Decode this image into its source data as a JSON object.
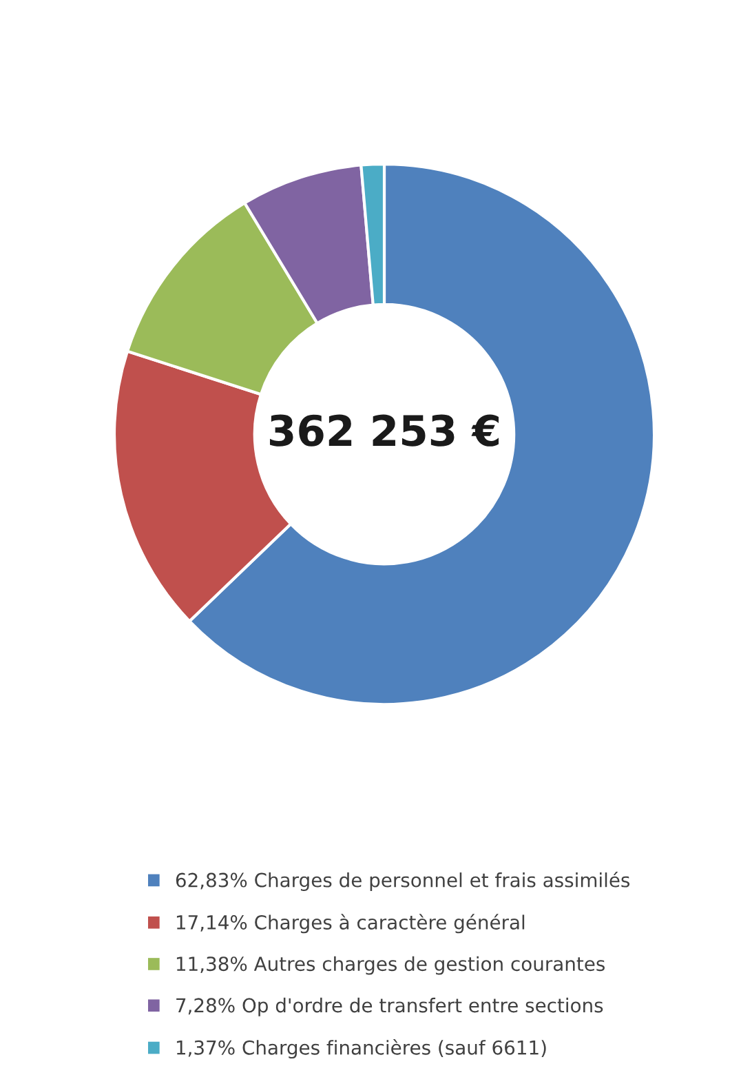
{
  "chart_data": {
    "type": "donut",
    "categories": [
      "62,83% Charges de personnel et frais assimilés",
      "17,14% Charges à caractère général",
      "11,38% Autres charges de gestion courantes",
      "7,28% Op d'ordre de transfert entre sections",
      "1,37% Charges financières (sauf 6611)"
    ],
    "values": [
      62.83,
      17.14,
      11.38,
      7.28,
      1.37
    ],
    "colors": [
      "#4f81bd",
      "#c0504d",
      "#9bbb59",
      "#8064a2",
      "#4bacc6"
    ],
    "annotations": [
      "362 253 €"
    ],
    "legend": "bottom"
  }
}
